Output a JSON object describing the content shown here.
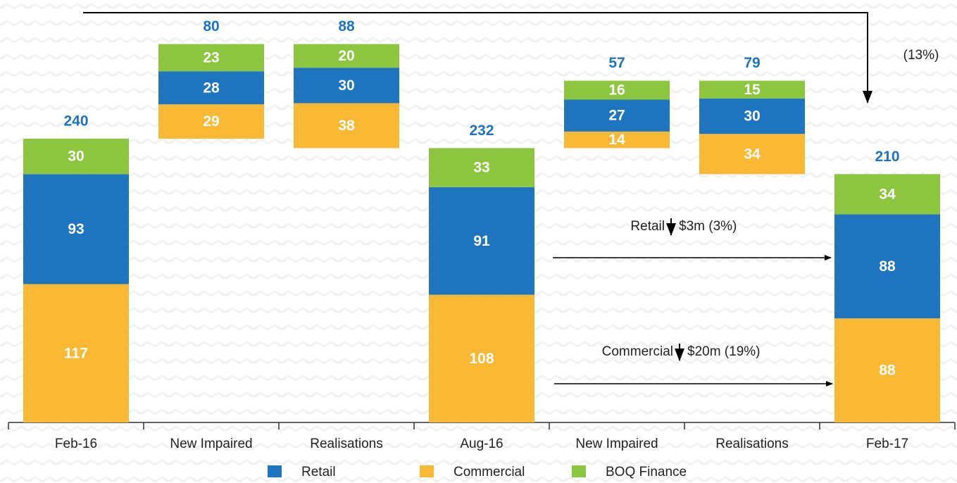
{
  "chart_data": {
    "type": "waterfall",
    "categories": [
      "Feb-16",
      "New Impaired",
      "Realisations",
      "Aug-16",
      "New Impaired",
      "Realisations",
      "Feb-17"
    ],
    "measure": [
      "total",
      "increase",
      "decrease",
      "total",
      "increase",
      "decrease",
      "total"
    ],
    "series": [
      {
        "name": "Retail",
        "color": "#1f74bf",
        "values": [
          93,
          28,
          30,
          91,
          27,
          30,
          88
        ]
      },
      {
        "name": "Commercial",
        "color": "#f9b935",
        "values": [
          117,
          29,
          38,
          108,
          14,
          34,
          88
        ]
      },
      {
        "name": "BOQ Finance",
        "color": "#8cc63e",
        "values": [
          30,
          23,
          20,
          33,
          16,
          15,
          34
        ]
      }
    ],
    "totals": [
      240,
      80,
      88,
      232,
      57,
      79,
      210
    ],
    "ylim": [
      0,
      340
    ],
    "annotations": [
      "(13%)",
      "Retail",
      "$3m (3%)",
      "Commercial",
      "$20m (19%)"
    ]
  }
}
